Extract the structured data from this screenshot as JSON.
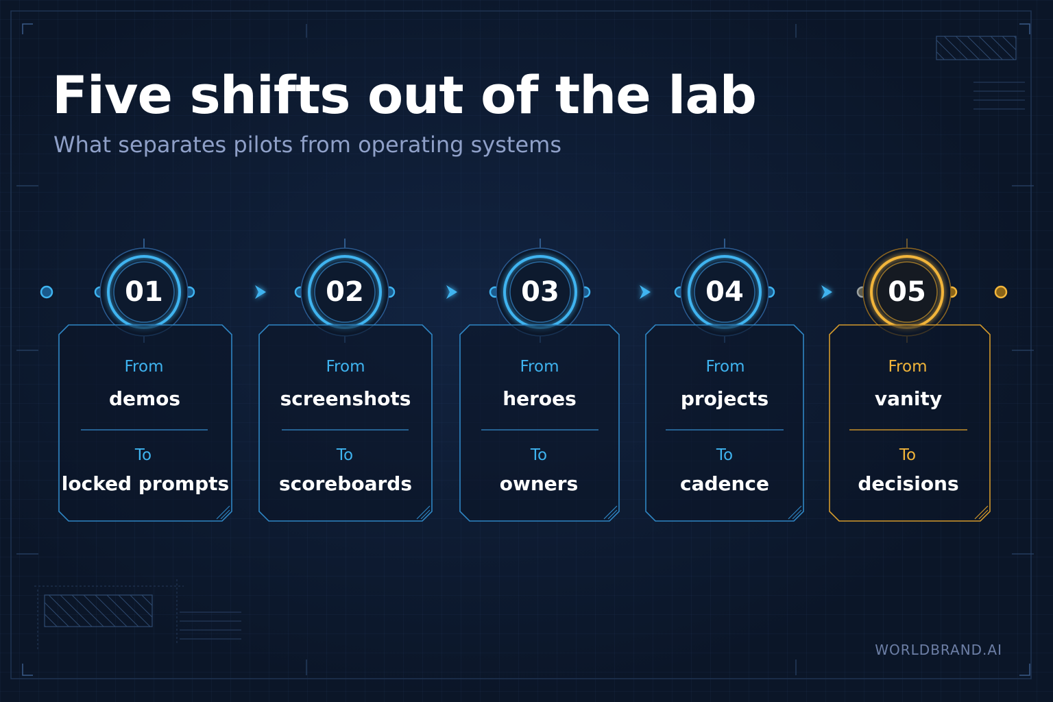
{
  "title": "Five shifts out of the lab",
  "subtitle": "What separates pilots from operating systems",
  "brand": "WORLDBRAND.AI",
  "colors": {
    "accent": "#3fb4f0",
    "highlight": "#f2b53a",
    "background": "#0b1628"
  },
  "steps": [
    {
      "number": "01",
      "from_label": "From",
      "from": "demos",
      "to_label": "To",
      "to": "locked prompts",
      "highlight": false
    },
    {
      "number": "02",
      "from_label": "From",
      "from": "screenshots",
      "to_label": "To",
      "to": "scoreboards",
      "highlight": false
    },
    {
      "number": "03",
      "from_label": "From",
      "from": "heroes",
      "to_label": "To",
      "to": "owners",
      "highlight": false
    },
    {
      "number": "04",
      "from_label": "From",
      "from": "projects",
      "to_label": "To",
      "to": "cadence",
      "highlight": false
    },
    {
      "number": "05",
      "from_label": "From",
      "from": "vanity",
      "to_label": "To",
      "to": "decisions",
      "highlight": true
    }
  ]
}
